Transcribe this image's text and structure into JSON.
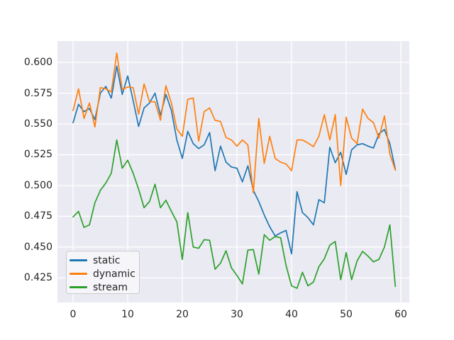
{
  "figure": {
    "background": "#ffffff",
    "plot_background": "#eaeaf2",
    "grid_color": "#ffffff",
    "text_color": "#262626",
    "legend_border_color": "#cccccc"
  },
  "chart_data": {
    "type": "line",
    "title": "",
    "xlabel": "",
    "ylabel": "",
    "grid": true,
    "legend_position": "lower left",
    "xlim": [
      -2.857,
      61.56
    ],
    "ylim": [
      0.405,
      0.6173
    ],
    "x_ticks": [
      0,
      10,
      20,
      30,
      40,
      50,
      60
    ],
    "x_tick_labels": [
      "0",
      "10",
      "20",
      "30",
      "40",
      "50",
      "60"
    ],
    "y_ticks": [
      0.425,
      0.45,
      0.475,
      0.5,
      0.525,
      0.55,
      0.575,
      0.6
    ],
    "y_tick_labels": [
      "0.425",
      "0.450",
      "0.475",
      "0.500",
      "0.525",
      "0.550",
      "0.575",
      "0.600"
    ],
    "x": [
      0,
      1,
      2,
      3,
      4,
      5,
      6,
      7,
      8,
      9,
      10,
      11,
      12,
      13,
      14,
      15,
      16,
      17,
      18,
      19,
      20,
      21,
      22,
      23,
      24,
      25,
      26,
      27,
      28,
      29,
      30,
      31,
      32,
      33,
      34,
      35,
      36,
      37,
      38,
      39,
      40,
      41,
      42,
      43,
      44,
      45,
      46,
      47,
      48,
      49,
      50,
      51,
      52,
      53,
      54,
      55,
      56,
      57,
      58,
      59
    ],
    "series": [
      {
        "name": "static",
        "color": "#1f77b4",
        "values": [
          0.551,
          0.566,
          0.56,
          0.5625,
          0.5535,
          0.575,
          0.5805,
          0.571,
          0.597,
          0.574,
          0.589,
          0.569,
          0.548,
          0.563,
          0.567,
          0.575,
          0.557,
          0.574,
          0.561,
          0.537,
          0.522,
          0.544,
          0.534,
          0.53,
          0.533,
          0.543,
          0.512,
          0.532,
          0.519,
          0.515,
          0.514,
          0.503,
          0.516,
          0.496,
          0.487,
          0.476,
          0.4665,
          0.459,
          0.4615,
          0.4635,
          0.4445,
          0.495,
          0.478,
          0.474,
          0.468,
          0.4885,
          0.486,
          0.531,
          0.5185,
          0.527,
          0.509,
          0.529,
          0.533,
          0.534,
          0.532,
          0.5305,
          0.542,
          0.5455,
          0.534,
          0.513
        ]
      },
      {
        "name": "dynamic",
        "color": "#ff7f0e",
        "values": [
          0.561,
          0.5785,
          0.5545,
          0.567,
          0.5475,
          0.5795,
          0.5785,
          0.576,
          0.6075,
          0.578,
          0.58,
          0.5795,
          0.558,
          0.5825,
          0.568,
          0.568,
          0.553,
          0.581,
          0.567,
          0.546,
          0.54,
          0.57,
          0.571,
          0.536,
          0.56,
          0.563,
          0.553,
          0.552,
          0.539,
          0.537,
          0.532,
          0.537,
          0.533,
          0.494,
          0.5545,
          0.518,
          0.54,
          0.522,
          0.519,
          0.5175,
          0.512,
          0.537,
          0.537,
          0.5345,
          0.5315,
          0.54,
          0.5575,
          0.537,
          0.5575,
          0.5,
          0.5555,
          0.5385,
          0.534,
          0.562,
          0.5545,
          0.551,
          0.5385,
          0.5565,
          0.5255,
          0.5125
        ]
      },
      {
        "name": "stream",
        "color": "#2ca02c",
        "values": [
          0.4745,
          0.479,
          0.466,
          0.468,
          0.486,
          0.496,
          0.502,
          0.51,
          0.537,
          0.514,
          0.5205,
          0.51,
          0.497,
          0.482,
          0.487,
          0.501,
          0.482,
          0.488,
          0.479,
          0.4705,
          0.44,
          0.478,
          0.45,
          0.449,
          0.456,
          0.4555,
          0.432,
          0.437,
          0.447,
          0.433,
          0.427,
          0.42,
          0.4475,
          0.448,
          0.428,
          0.46,
          0.4555,
          0.4585,
          0.4575,
          0.435,
          0.4185,
          0.4165,
          0.4295,
          0.4185,
          0.4215,
          0.434,
          0.4405,
          0.4515,
          0.4545,
          0.4235,
          0.4455,
          0.4235,
          0.4388,
          0.4465,
          0.4426,
          0.438,
          0.44,
          0.45,
          0.468,
          0.418
        ]
      }
    ]
  }
}
